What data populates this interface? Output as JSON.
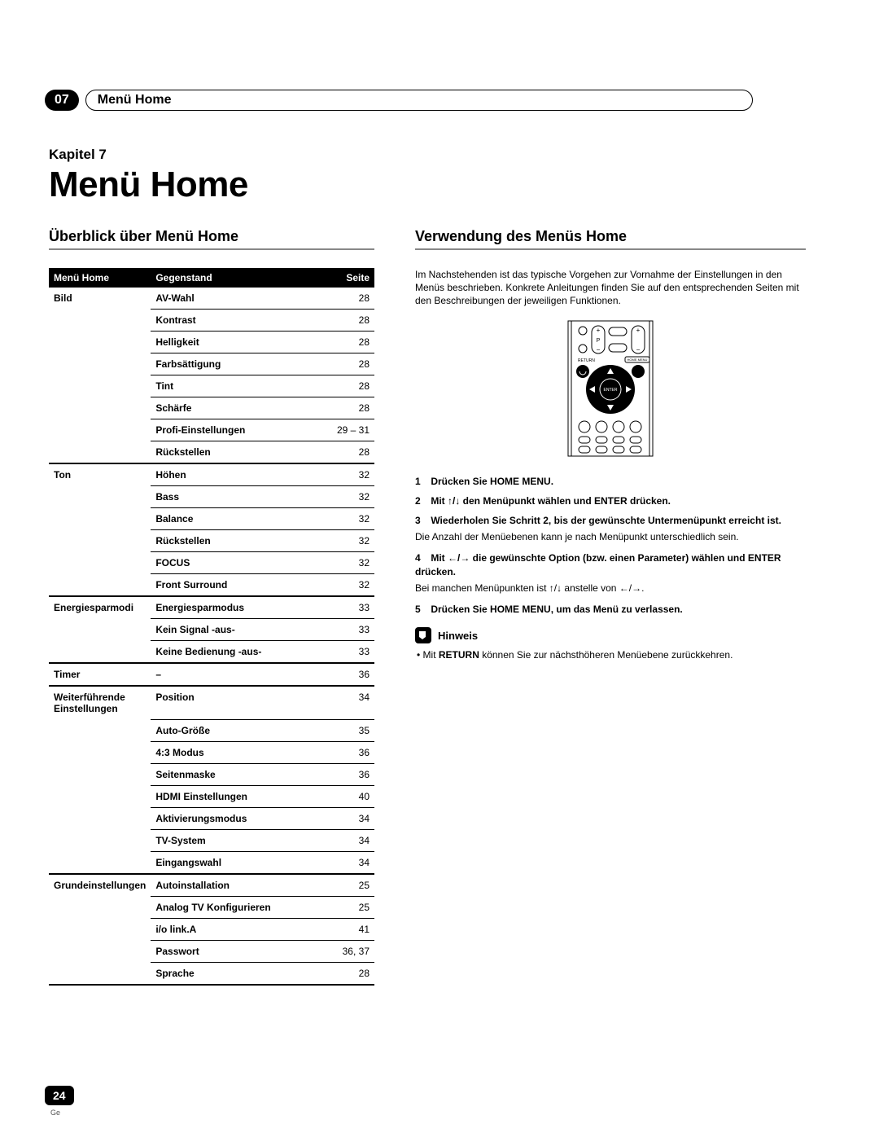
{
  "chapter_tab": {
    "number": "07",
    "title": "Menü Home"
  },
  "kapitel": "Kapitel 7",
  "main_title": "Menü Home",
  "left": {
    "heading": "Überblick über Menü Home",
    "table": {
      "headers": [
        "Menü Home",
        "Gegenstand",
        "Seite"
      ],
      "groups": [
        {
          "category": "Bild",
          "rows": [
            {
              "item": "AV-Wahl",
              "page": "28"
            },
            {
              "item": "Kontrast",
              "page": "28"
            },
            {
              "item": "Helligkeit",
              "page": "28"
            },
            {
              "item": "Farbsättigung",
              "page": "28"
            },
            {
              "item": "Tint",
              "page": "28"
            },
            {
              "item": "Schärfe",
              "page": "28"
            },
            {
              "item": "Profi-Einstellungen",
              "page": "29 – 31"
            },
            {
              "item": "Rückstellen",
              "page": "28"
            }
          ]
        },
        {
          "category": "Ton",
          "rows": [
            {
              "item": "Höhen",
              "page": "32"
            },
            {
              "item": "Bass",
              "page": "32"
            },
            {
              "item": "Balance",
              "page": "32"
            },
            {
              "item": "Rückstellen",
              "page": "32"
            },
            {
              "item": "FOCUS",
              "page": "32"
            },
            {
              "item": "Front Surround",
              "page": "32"
            }
          ]
        },
        {
          "category": "Energiesparmodi",
          "rows": [
            {
              "item": "Energiesparmodus",
              "page": "33"
            },
            {
              "item": "Kein Signal -aus-",
              "page": "33"
            },
            {
              "item": "Keine Bedienung -aus-",
              "page": "33"
            }
          ]
        },
        {
          "category": "Timer",
          "rows": [
            {
              "item": "–",
              "page": "36"
            }
          ]
        },
        {
          "category": "Weiterführende Einstellungen",
          "rows": [
            {
              "item": "Position",
              "page": "34"
            },
            {
              "item": "Auto-Größe",
              "page": "35"
            },
            {
              "item": "4:3 Modus",
              "page": "36"
            },
            {
              "item": "Seitenmaske",
              "page": "36"
            },
            {
              "item": "HDMI Einstellungen",
              "page": "40"
            },
            {
              "item": "Aktivierungsmodus",
              "page": "34"
            },
            {
              "item": "TV-System",
              "page": "34"
            },
            {
              "item": "Eingangswahl",
              "page": "34"
            }
          ]
        },
        {
          "category": "Grundeinstellungen",
          "rows": [
            {
              "item": "Autoinstallation",
              "page": "25"
            },
            {
              "item": "Analog TV Konfigurieren",
              "page": "25"
            },
            {
              "item": "i/o link.A",
              "page": "41"
            },
            {
              "item": "Passwort",
              "page": "36, 37"
            },
            {
              "item": "Sprache",
              "page": "28"
            }
          ]
        }
      ]
    }
  },
  "right": {
    "heading": "Verwendung des Menüs Home",
    "intro": "Im Nachstehenden ist das typische Vorgehen zur Vornahme der Einstellungen in den Menüs beschrieben. Konkrete Anleitungen finden Sie auf den entsprechenden Seiten mit den Beschreibungen der jeweiligen Funktionen.",
    "remote": {
      "labels": {
        "return": "RETURN",
        "home_menu": "HOME MENU",
        "enter": "ENTER",
        "p": "P"
      }
    },
    "steps": [
      {
        "n": "1",
        "lead": "Drücken Sie HOME MENU.",
        "note": ""
      },
      {
        "n": "2",
        "lead": "Mit ↑/↓ den Menüpunkt wählen und ENTER drücken.",
        "note": ""
      },
      {
        "n": "3",
        "lead": "Wiederholen Sie Schritt 2, bis der gewünschte Untermenüpunkt erreicht ist.",
        "note": "Die Anzahl der Menüebenen kann je nach Menüpunkt unterschiedlich sein."
      },
      {
        "n": "4",
        "lead": "Mit ←/→ die gewünschte Option (bzw. einen Parameter) wählen und ENTER drücken.",
        "note": "Bei manchen Menüpunkten ist ↑/↓ anstelle von ←/→."
      },
      {
        "n": "5",
        "lead": "Drücken Sie HOME MENU, um das Menü zu verlassen.",
        "note": ""
      }
    ],
    "hinweis": {
      "label": "Hinweis",
      "bullet_pre": "• Mit ",
      "bullet_bold": "RETURN",
      "bullet_post": " können Sie zur nächsthöheren Menüebene zurückkehren."
    }
  },
  "footer": {
    "page": "24",
    "lang": "Ge"
  },
  "colors": {
    "black": "#000000",
    "white": "#ffffff",
    "rule": "#888888"
  }
}
